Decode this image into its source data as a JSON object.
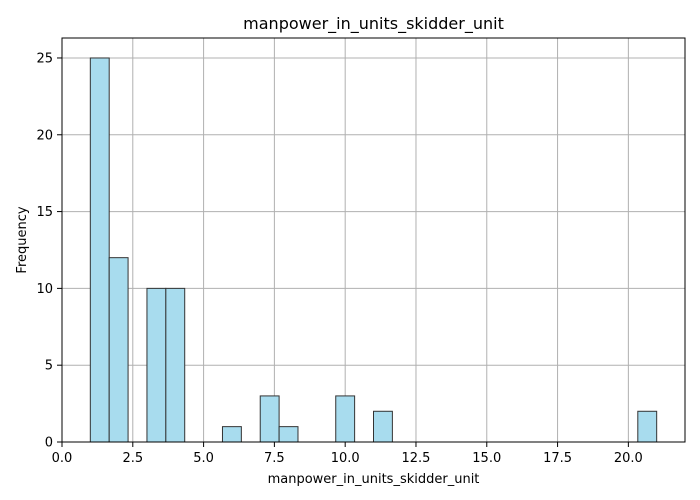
{
  "chart_data": {
    "type": "bar",
    "title": "manpower_in_units_skidder_unit",
    "xlabel": "manpower_in_units_skidder_unit",
    "ylabel": "Frequency",
    "xlim": [
      0,
      22
    ],
    "ylim": [
      0,
      26.3
    ],
    "xticks": [
      0.0,
      2.5,
      5.0,
      7.5,
      10.0,
      12.5,
      15.0,
      17.5,
      20.0
    ],
    "xtick_labels": [
      "0.0",
      "2.5",
      "5.0",
      "7.5",
      "10.0",
      "12.5",
      "15.0",
      "17.5",
      "20.0"
    ],
    "yticks": [
      0,
      5,
      10,
      15,
      20,
      25
    ],
    "ytick_labels": [
      "0",
      "5",
      "10",
      "15",
      "20",
      "25"
    ],
    "grid": true,
    "bin_width": 0.6667,
    "bins": [
      {
        "start": 1.0,
        "value": 25
      },
      {
        "start": 1.6667,
        "value": 12
      },
      {
        "start": 3.0,
        "value": 10
      },
      {
        "start": 3.6667,
        "value": 10
      },
      {
        "start": 5.6667,
        "value": 1
      },
      {
        "start": 7.0,
        "value": 3
      },
      {
        "start": 7.6667,
        "value": 1
      },
      {
        "start": 9.6667,
        "value": 3
      },
      {
        "start": 11.0,
        "value": 2
      },
      {
        "start": 20.3333,
        "value": 2
      }
    ],
    "colors": {
      "bar_fill": "#a8dcee",
      "bar_edge": "#333333",
      "grid": "#b0b0b0"
    }
  }
}
